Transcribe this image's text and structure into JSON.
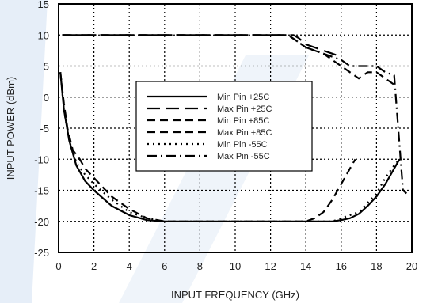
{
  "chart_data": {
    "type": "line",
    "title": "",
    "xlabel": "INPUT FREQUENCY (GHz)",
    "ylabel": "INPUT POWER (dBm)",
    "xlim": [
      0,
      20
    ],
    "ylim": [
      -25,
      15
    ],
    "xticks": [
      "0",
      "2",
      "4",
      "6",
      "8",
      "10",
      "12",
      "14",
      "16",
      "18",
      "20"
    ],
    "yticks": [
      "15",
      "10",
      "5",
      "0",
      "-5",
      "-10",
      "-15",
      "-20",
      "-25"
    ],
    "grid": true,
    "legend_position": "center-left",
    "colors": {
      "line": "#000000",
      "grid": "#000000",
      "watermark": "#dbe7f5"
    },
    "series": [
      {
        "name": "Min Pin +25C",
        "style": "solid",
        "points": [
          [
            0.1,
            4
          ],
          [
            0.3,
            -2
          ],
          [
            0.6,
            -7
          ],
          [
            1.0,
            -11
          ],
          [
            1.5,
            -13.5
          ],
          [
            2,
            -15
          ],
          [
            3,
            -17.5
          ],
          [
            4,
            -19
          ],
          [
            5,
            -19.8
          ],
          [
            6,
            -20
          ],
          [
            8,
            -20
          ],
          [
            10,
            -20
          ],
          [
            12,
            -20
          ],
          [
            14,
            -20
          ],
          [
            15.5,
            -20
          ],
          [
            16,
            -19.8
          ],
          [
            16.5,
            -19.5
          ],
          [
            17,
            -18.8
          ],
          [
            17.5,
            -17.5
          ],
          [
            18,
            -16
          ],
          [
            18.5,
            -14
          ],
          [
            19,
            -11.5
          ],
          [
            19.3,
            -10
          ]
        ]
      },
      {
        "name": "Max Pin +25C",
        "style": "long-dash",
        "points": [
          [
            0.2,
            10
          ],
          [
            2,
            10
          ],
          [
            4,
            10
          ],
          [
            6,
            10
          ],
          [
            8,
            10
          ],
          [
            10,
            10
          ],
          [
            12,
            10
          ],
          [
            13.3,
            10
          ],
          [
            13.6,
            9.5
          ],
          [
            14,
            8.5
          ],
          [
            14.5,
            8
          ],
          [
            15,
            7.5
          ],
          [
            15.5,
            7
          ],
          [
            16,
            6.5
          ]
        ]
      },
      {
        "name": "Min Pin +85C",
        "style": "dash",
        "points": [
          [
            0.1,
            4
          ],
          [
            0.3,
            -1
          ],
          [
            0.5,
            -5
          ],
          [
            0.8,
            -8.5
          ],
          [
            1.2,
            -10
          ],
          [
            1.5,
            -11.5
          ],
          [
            2,
            -13
          ],
          [
            3,
            -16
          ],
          [
            4,
            -18
          ],
          [
            5,
            -19.5
          ],
          [
            6,
            -20
          ],
          [
            8,
            -20
          ],
          [
            10,
            -20
          ],
          [
            12,
            -20
          ],
          [
            14,
            -20
          ],
          [
            14.5,
            -19.5
          ],
          [
            15,
            -18.5
          ],
          [
            15.5,
            -16.5
          ],
          [
            16,
            -14
          ],
          [
            16.5,
            -11.5
          ],
          [
            16.8,
            -10
          ]
        ]
      },
      {
        "name": "Max Pin +85C",
        "style": "dash",
        "points": [
          [
            0.2,
            10
          ],
          [
            2,
            10
          ],
          [
            4,
            10
          ],
          [
            6,
            10
          ],
          [
            8,
            10
          ],
          [
            10,
            10
          ],
          [
            12,
            10
          ],
          [
            13,
            10
          ],
          [
            13.5,
            9
          ],
          [
            14,
            8
          ],
          [
            14.5,
            7.5
          ],
          [
            15,
            7
          ],
          [
            15.5,
            6
          ],
          [
            16,
            5
          ],
          [
            16.5,
            4
          ],
          [
            17,
            3
          ],
          [
            17.5,
            4
          ],
          [
            18,
            4
          ],
          [
            18.5,
            3
          ],
          [
            19,
            2
          ]
        ]
      },
      {
        "name": "Min Pin -55C",
        "style": "dot",
        "points": [
          [
            0.1,
            4
          ],
          [
            0.3,
            -2
          ],
          [
            0.6,
            -7
          ],
          [
            1,
            -10.5
          ],
          [
            1.5,
            -12.5
          ],
          [
            2,
            -14
          ],
          [
            3,
            -16.5
          ],
          [
            4,
            -18.5
          ],
          [
            5,
            -19.5
          ],
          [
            6,
            -20
          ],
          [
            8,
            -20
          ],
          [
            10,
            -20
          ],
          [
            12,
            -20
          ],
          [
            14,
            -20
          ],
          [
            15.5,
            -20
          ],
          [
            16,
            -19.5
          ],
          [
            16.5,
            -19
          ],
          [
            17,
            -18.5
          ],
          [
            17.5,
            -17
          ],
          [
            18,
            -15.5
          ],
          [
            18.5,
            -13
          ],
          [
            19,
            -11
          ],
          [
            19.3,
            -10
          ]
        ]
      },
      {
        "name": "Max Pin -55C",
        "style": "dash-dot",
        "points": [
          [
            0.2,
            10
          ],
          [
            4,
            10
          ],
          [
            8,
            10
          ],
          [
            12,
            10
          ],
          [
            13,
            10
          ],
          [
            13.5,
            9
          ],
          [
            14,
            8
          ],
          [
            15,
            7
          ],
          [
            16,
            6
          ],
          [
            16.5,
            5
          ],
          [
            17,
            5
          ],
          [
            17.5,
            5
          ],
          [
            18,
            5
          ],
          [
            18.5,
            4
          ],
          [
            19,
            3.5
          ],
          [
            19.5,
            -15
          ],
          [
            19.7,
            -15.5
          ]
        ]
      }
    ]
  }
}
